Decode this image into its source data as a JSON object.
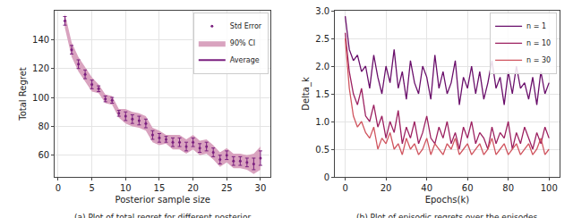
{
  "chart_data": [
    {
      "type": "line",
      "caption": "(a) Plot of total regret for different posterior",
      "x_label": "Posterior sample size",
      "y_label": "Total Regret",
      "x": [
        1,
        2,
        3,
        4,
        5,
        6,
        7,
        8,
        9,
        10,
        11,
        12,
        13,
        14,
        15,
        16,
        17,
        18,
        19,
        20,
        21,
        22,
        23,
        24,
        25,
        26,
        27,
        28,
        29,
        30
      ],
      "series": [
        {
          "name": "Average",
          "color": "#7a1f7f",
          "line_style": "solid",
          "values": [
            153,
            133,
            123,
            116,
            109,
            106,
            99,
            98,
            89,
            87,
            85,
            84,
            82,
            74,
            72,
            71,
            69,
            69,
            66,
            69,
            65,
            66,
            62,
            57,
            60,
            56,
            56,
            55,
            54,
            58
          ]
        },
        {
          "name": "90% CI",
          "type": "band",
          "color": "#d9a3bf",
          "lower": [
            148,
            128,
            118,
            111,
            104,
            103,
            96,
            95,
            86,
            82,
            80,
            79,
            77,
            69,
            67,
            68,
            64,
            64,
            61,
            64,
            60,
            61,
            57,
            52,
            55,
            51,
            51,
            50,
            47,
            50
          ],
          "upper": [
            158,
            138,
            128,
            121,
            114,
            109,
            102,
            101,
            92,
            92,
            90,
            89,
            87,
            79,
            77,
            74,
            74,
            74,
            71,
            74,
            70,
            71,
            67,
            62,
            65,
            61,
            61,
            60,
            61,
            66
          ]
        },
        {
          "name": "Std Error",
          "type": "errorbar",
          "color": "#7a1f7f",
          "marker": "circle",
          "values": [
            153,
            133,
            123,
            116,
            109,
            106,
            99,
            98,
            89,
            87,
            85,
            84,
            82,
            74,
            72,
            71,
            69,
            69,
            66,
            69,
            65,
            66,
            62,
            57,
            60,
            56,
            56,
            55,
            54,
            58
          ],
          "error": [
            3,
            3,
            3,
            3,
            3,
            2,
            2,
            2,
            2,
            3,
            3,
            3,
            3,
            3,
            3,
            2,
            3,
            3,
            3,
            3,
            3,
            3,
            3,
            3,
            3,
            3,
            3,
            3,
            4,
            5
          ]
        }
      ],
      "xlim": [
        -0.5,
        31.5
      ],
      "xticks": [
        0,
        5,
        10,
        15,
        20,
        25,
        30
      ],
      "ylim": [
        45,
        160
      ],
      "yticks": [
        60,
        80,
        100,
        120,
        140
      ],
      "grid": true,
      "legend": "upper right"
    },
    {
      "type": "line",
      "caption": "(b) Plot of episodic regrets over the episodes",
      "x_label": "Epochs(k)",
      "y_label": "Delta_k",
      "x": [
        0,
        2,
        4,
        6,
        8,
        10,
        12,
        14,
        16,
        18,
        20,
        22,
        24,
        26,
        28,
        30,
        32,
        34,
        36,
        38,
        40,
        42,
        44,
        46,
        48,
        50,
        52,
        54,
        56,
        58,
        60,
        62,
        64,
        66,
        68,
        70,
        72,
        74,
        76,
        78,
        80,
        82,
        84,
        86,
        88,
        90,
        92,
        94,
        96,
        98,
        100
      ],
      "series": [
        {
          "name": "n = 1",
          "color": "#6a0f6b",
          "line_style": "solid",
          "values": [
            2.9,
            2.3,
            2.1,
            2.2,
            1.9,
            2.0,
            1.6,
            2.2,
            1.8,
            1.5,
            2.0,
            1.7,
            2.3,
            1.6,
            1.9,
            1.4,
            2.1,
            1.7,
            1.5,
            2.0,
            1.8,
            1.4,
            2.2,
            1.6,
            1.9,
            1.5,
            1.7,
            2.1,
            1.3,
            1.8,
            1.6,
            2.0,
            1.5,
            1.9,
            1.4,
            1.7,
            2.1,
            1.6,
            1.8,
            1.3,
            1.9,
            1.5,
            2.0,
            1.6,
            1.7,
            1.4,
            1.8,
            1.3,
            1.9,
            1.5,
            1.7
          ]
        },
        {
          "name": "n = 10",
          "color": "#9c2060",
          "line_style": "solid",
          "values": [
            2.6,
            1.9,
            1.5,
            1.3,
            1.6,
            1.1,
            1.0,
            1.3,
            0.9,
            1.1,
            0.7,
            1.0,
            0.8,
            1.2,
            0.6,
            0.9,
            0.7,
            1.0,
            0.6,
            0.8,
            1.1,
            0.7,
            0.6,
            0.9,
            0.7,
            1.0,
            0.6,
            0.8,
            0.5,
            0.9,
            0.7,
            1.0,
            0.6,
            0.8,
            0.7,
            0.5,
            0.9,
            0.6,
            0.8,
            0.7,
            1.0,
            0.5,
            0.8,
            0.6,
            0.9,
            0.7,
            0.5,
            0.8,
            0.6,
            0.9,
            0.7
          ]
        },
        {
          "name": "n = 30",
          "color": "#d0555f",
          "line_style": "solid",
          "values": [
            2.5,
            1.6,
            1.1,
            0.9,
            1.0,
            0.8,
            0.7,
            0.9,
            0.5,
            0.7,
            0.6,
            0.8,
            0.5,
            0.6,
            0.4,
            0.7,
            0.5,
            0.6,
            0.4,
            0.5,
            0.7,
            0.4,
            0.6,
            0.5,
            0.4,
            0.6,
            0.5,
            0.7,
            0.4,
            0.5,
            0.6,
            0.4,
            0.5,
            0.6,
            0.4,
            0.5,
            0.7,
            0.4,
            0.5,
            0.6,
            0.4,
            0.5,
            0.6,
            0.4,
            0.5,
            0.6,
            0.4,
            0.5,
            0.7,
            0.4,
            0.5
          ]
        }
      ],
      "xlim": [
        -5,
        105
      ],
      "xticks": [
        0,
        20,
        40,
        60,
        80,
        100
      ],
      "ylim": [
        0,
        3.0
      ],
      "yticks": [
        0,
        {
          "value": 0.5,
          "label": "0.5"
        },
        {
          "value": 1,
          "label": "1.0"
        },
        {
          "value": 1.5,
          "label": "1.5"
        },
        {
          "value": 2,
          "label": "2.0"
        },
        {
          "value": 2.5,
          "label": "2.5"
        },
        {
          "value": 3,
          "label": "3.0"
        }
      ],
      "grid": true,
      "legend": "upper right"
    }
  ]
}
